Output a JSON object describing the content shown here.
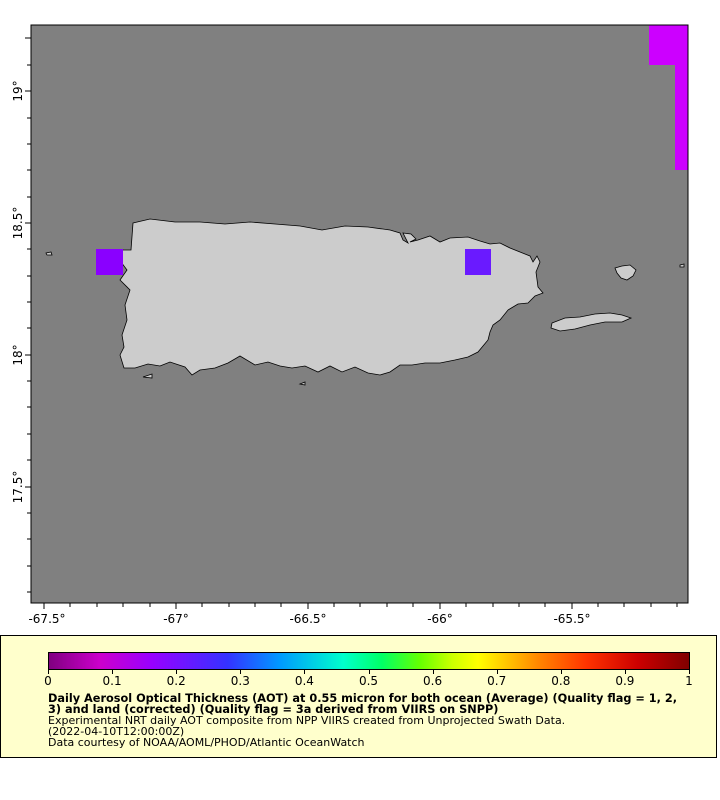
{
  "map": {
    "lon_ticks": [
      "-67.5°",
      "-67°",
      "-66.5°",
      "-66°",
      "-65.5°"
    ],
    "lat_ticks": [
      "19°",
      "18.5°",
      "18°",
      "17.5°"
    ],
    "colors": {
      "ocean": "#808080",
      "land": "#cccccc",
      "pixel_magenta": "#cc00ff",
      "pixel_violet": "#8a00ff",
      "pixel_blue": "#6a1aff"
    }
  },
  "legend": {
    "colorbar_ticks": [
      "0",
      "0.1",
      "0.2",
      "0.3",
      "0.4",
      "0.5",
      "0.6",
      "0.7",
      "0.8",
      "0.9",
      "1"
    ],
    "title": "Daily Aerosol Optical Thickness (AOT) at 0.55 micron for both ocean (Average) (Quality flag = 1, 2, 3) and land (corrected) (Quality flag = 3a derived from VIIRS on SNPP)",
    "line1": "Experimental NRT daily AOT composite from NPP VIIRS created from Unprojected Swath Data.",
    "line2": "(2022-04-10T12:00:00Z)",
    "line3": "Data courtesy of NOAA/AOML/PHOD/Atlantic OceanWatch"
  }
}
